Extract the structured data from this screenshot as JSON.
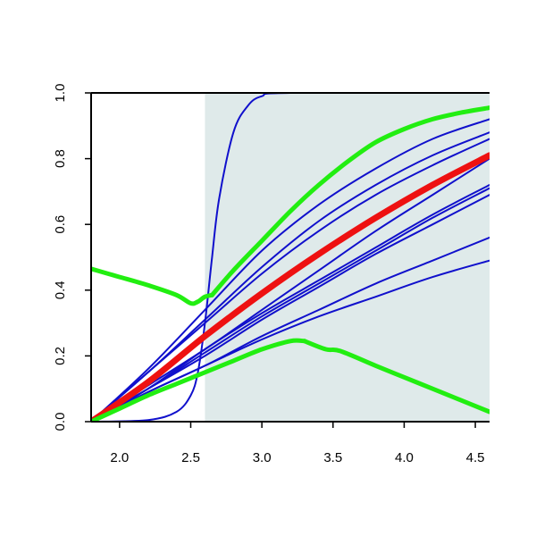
{
  "chart_data": {
    "type": "line",
    "title": "",
    "xlabel": "",
    "ylabel": "",
    "xlim": [
      1.8,
      4.6
    ],
    "ylim": [
      0.0,
      1.0
    ],
    "grid": false,
    "shaded_region": {
      "x_from": 2.6,
      "x_to": 4.6,
      "color": "#dfeaea"
    },
    "x_ticks": [
      {
        "value": 2.0,
        "label": "2.0"
      },
      {
        "value": 2.5,
        "label": "2.5"
      },
      {
        "value": 3.0,
        "label": "3.0"
      },
      {
        "value": 3.5,
        "label": "3.5"
      },
      {
        "value": 4.0,
        "label": "4.0"
      },
      {
        "value": 4.5,
        "label": "4.5"
      }
    ],
    "y_ticks": [
      {
        "value": 0.0,
        "label": "0.0"
      },
      {
        "value": 0.2,
        "label": "0.2"
      },
      {
        "value": 0.4,
        "label": "0.4"
      },
      {
        "value": 0.6,
        "label": "0.6"
      },
      {
        "value": 0.8,
        "label": "0.8"
      },
      {
        "value": 1.0,
        "label": "1.0"
      }
    ],
    "colors": {
      "blue": "#1010cc",
      "red": "#ee1111",
      "green": "#22ee11",
      "axis": "#000000"
    },
    "series": [
      {
        "color": "#1010cc",
        "width": 2,
        "x": [
          1.8,
          2.2,
          2.4,
          2.5,
          2.55,
          2.6,
          2.65,
          2.7,
          2.8,
          2.9,
          3.0,
          3.2,
          4.6
        ],
        "y": [
          0.0,
          0.005,
          0.03,
          0.08,
          0.15,
          0.3,
          0.5,
          0.68,
          0.88,
          0.96,
          0.99,
          1.0,
          1.0
        ]
      },
      {
        "color": "#1010cc",
        "width": 2,
        "x": [
          1.8,
          2.2,
          2.6,
          3.0,
          3.4,
          3.8,
          4.2,
          4.6
        ],
        "y": [
          0.0,
          0.16,
          0.34,
          0.52,
          0.66,
          0.77,
          0.86,
          0.92
        ]
      },
      {
        "color": "#1010cc",
        "width": 2,
        "x": [
          1.8,
          2.2,
          2.6,
          3.0,
          3.4,
          3.8,
          4.2,
          4.6
        ],
        "y": [
          0.0,
          0.15,
          0.31,
          0.47,
          0.61,
          0.72,
          0.81,
          0.88
        ]
      },
      {
        "color": "#1010cc",
        "width": 2,
        "x": [
          1.8,
          2.2,
          2.6,
          3.0,
          3.4,
          3.8,
          4.2,
          4.6
        ],
        "y": [
          0.0,
          0.15,
          0.3,
          0.45,
          0.58,
          0.69,
          0.78,
          0.86
        ]
      },
      {
        "color": "#1010cc",
        "width": 2,
        "x": [
          1.8,
          2.2,
          2.6,
          3.0,
          3.4,
          3.8,
          4.2,
          4.6
        ],
        "y": [
          0.0,
          0.11,
          0.22,
          0.34,
          0.46,
          0.58,
          0.69,
          0.8
        ]
      },
      {
        "color": "#1010cc",
        "width": 2,
        "x": [
          1.8,
          2.2,
          2.6,
          3.0,
          3.4,
          3.8,
          4.2,
          4.6
        ],
        "y": [
          0.0,
          0.1,
          0.22,
          0.33,
          0.43,
          0.53,
          0.63,
          0.72
        ]
      },
      {
        "color": "#1010cc",
        "width": 2,
        "x": [
          1.8,
          2.2,
          2.6,
          3.0,
          3.4,
          3.8,
          4.2,
          4.6
        ],
        "y": [
          0.0,
          0.1,
          0.21,
          0.32,
          0.42,
          0.52,
          0.62,
          0.71
        ]
      },
      {
        "color": "#1010cc",
        "width": 2,
        "x": [
          1.8,
          2.2,
          2.6,
          3.0,
          3.4,
          3.8,
          4.2,
          4.6
        ],
        "y": [
          0.0,
          0.1,
          0.2,
          0.31,
          0.41,
          0.51,
          0.6,
          0.69
        ]
      },
      {
        "color": "#1010cc",
        "width": 2,
        "x": [
          1.8,
          2.2,
          2.6,
          3.0,
          3.4,
          3.8,
          4.2,
          4.6
        ],
        "y": [
          0.0,
          0.09,
          0.17,
          0.26,
          0.34,
          0.42,
          0.49,
          0.56
        ]
      },
      {
        "color": "#1010cc",
        "width": 2,
        "x": [
          1.8,
          2.2,
          2.6,
          3.0,
          3.4,
          3.8,
          4.2,
          4.6
        ],
        "y": [
          0.0,
          0.09,
          0.17,
          0.25,
          0.32,
          0.38,
          0.44,
          0.49
        ]
      },
      {
        "color": "#ee1111",
        "width": 7,
        "x": [
          1.8,
          2.2,
          2.6,
          3.0,
          3.4,
          3.8,
          4.2,
          4.6
        ],
        "y": [
          0.0,
          0.12,
          0.26,
          0.39,
          0.51,
          0.62,
          0.72,
          0.81
        ]
      },
      {
        "color": "#22ee11",
        "width": 5,
        "x": [
          1.8,
          2.0,
          2.2,
          2.4,
          2.5,
          2.55,
          2.6,
          2.65
        ],
        "y": [
          0.465,
          0.44,
          0.415,
          0.385,
          0.36,
          0.365,
          0.38,
          0.385
        ]
      },
      {
        "color": "#22ee11",
        "width": 5,
        "x": [
          2.65,
          2.8,
          3.0,
          3.2,
          3.4,
          3.6,
          3.8,
          4.0,
          4.2,
          4.4,
          4.6
        ],
        "y": [
          0.385,
          0.46,
          0.55,
          0.64,
          0.72,
          0.79,
          0.85,
          0.89,
          0.92,
          0.94,
          0.955
        ]
      },
      {
        "color": "#22ee11",
        "width": 5,
        "x": [
          1.8,
          2.0,
          2.2,
          2.4,
          2.6,
          2.8,
          3.0,
          3.2,
          3.3
        ],
        "y": [
          0.0,
          0.04,
          0.08,
          0.115,
          0.15,
          0.185,
          0.22,
          0.245,
          0.245
        ]
      },
      {
        "color": "#22ee11",
        "width": 5,
        "x": [
          3.3,
          3.45,
          3.55,
          3.8,
          4.0,
          4.2,
          4.4,
          4.6
        ],
        "y": [
          0.245,
          0.22,
          0.215,
          0.17,
          0.135,
          0.1,
          0.065,
          0.03
        ]
      }
    ]
  }
}
